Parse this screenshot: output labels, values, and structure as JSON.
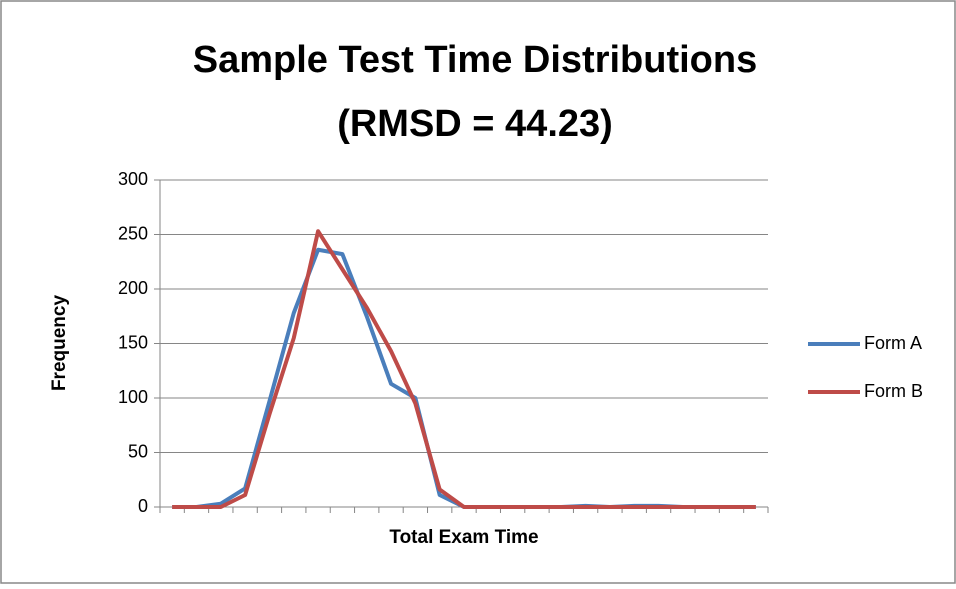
{
  "chart_data": {
    "type": "line",
    "title": "Sample Test Time Distributions",
    "subtitle": "(RMSD = 44.23)",
    "x_label": "Total Exam Time",
    "y_label": "Frequency",
    "categories": [
      null,
      null,
      null,
      null,
      null,
      null,
      null,
      null,
      null,
      null,
      null,
      null,
      null,
      null,
      null,
      null,
      null,
      null,
      null,
      null,
      null,
      null,
      null,
      null,
      null
    ],
    "series": [
      {
        "name": "Form A",
        "color": "#4a7ebb",
        "values": [
          0,
          0,
          3,
          17,
          97,
          178,
          236,
          232,
          175,
          113,
          100,
          11,
          0,
          0,
          0,
          0,
          0,
          1,
          0,
          1,
          1,
          0,
          0,
          0,
          0
        ]
      },
      {
        "name": "Form B",
        "color": "#be4b48",
        "values": [
          0,
          0,
          0,
          11,
          85,
          155,
          253,
          218,
          183,
          143,
          95,
          16,
          0,
          0,
          0,
          0,
          0,
          0,
          0,
          0,
          0,
          0,
          0,
          0,
          0
        ]
      }
    ],
    "ylim": [
      0,
      300
    ],
    "yticks": [
      0,
      50,
      100,
      150,
      200,
      250,
      300
    ],
    "grid": true,
    "legend": "right"
  }
}
